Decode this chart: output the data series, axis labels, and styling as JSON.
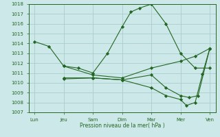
{
  "title": "Pression niveau de la mer( hPa )",
  "background_color": "#cce8e8",
  "grid_color": "#aacccc",
  "line_color": "#226622",
  "ylim": [
    1007,
    1018
  ],
  "yticks": [
    1007,
    1008,
    1009,
    1010,
    1011,
    1012,
    1013,
    1014,
    1015,
    1016,
    1017,
    1018
  ],
  "xtick_labels": [
    "Lun",
    "Jeu",
    "Sam",
    "Dim",
    "Mar",
    "Mer",
    "Ven"
  ],
  "xtick_positions": [
    0,
    1,
    2,
    3,
    4,
    5,
    6
  ],
  "lines": [
    {
      "x": [
        0,
        0.5,
        1,
        1.5,
        2,
        2.5,
        3,
        3.3,
        3.6,
        4,
        4.5,
        5,
        5.5,
        6
      ],
      "y": [
        1014.2,
        1013.7,
        1011.7,
        1011.5,
        1011.0,
        1013.0,
        1015.7,
        1017.2,
        1017.6,
        1018.0,
        1016.0,
        1013.0,
        1011.5,
        1011.5
      ]
    },
    {
      "x": [
        1,
        2,
        3,
        4,
        5,
        5.5,
        6
      ],
      "y": [
        1011.7,
        1010.8,
        1010.5,
        1011.5,
        1012.2,
        1012.7,
        1013.5
      ]
    },
    {
      "x": [
        1,
        2,
        3,
        4,
        4.5,
        5,
        5.2,
        5.5,
        5.75,
        6
      ],
      "y": [
        1010.5,
        1010.5,
        1010.3,
        1009.5,
        1008.7,
        1008.3,
        1007.7,
        1008.0,
        1010.9,
        1013.5
      ]
    },
    {
      "x": [
        1,
        2,
        3,
        4,
        4.5,
        5,
        5.3,
        5.6,
        6
      ],
      "y": [
        1010.4,
        1010.5,
        1010.3,
        1010.8,
        1009.5,
        1008.7,
        1008.5,
        1008.7,
        1013.5
      ]
    }
  ]
}
